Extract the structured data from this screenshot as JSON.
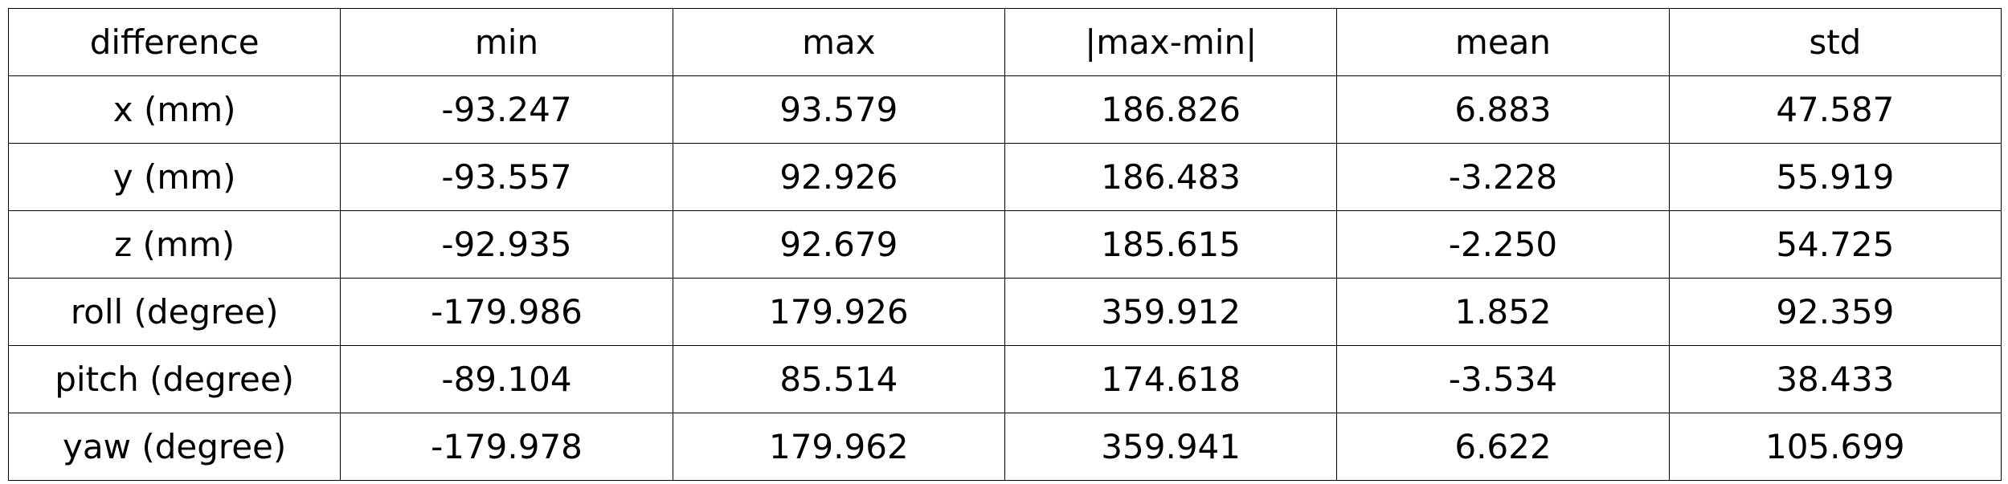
{
  "chart_data": {
    "type": "table",
    "columns": [
      "difference",
      "min",
      "max",
      "|max-min|",
      "mean",
      "std"
    ],
    "rows": [
      [
        "x (mm)",
        "-93.247",
        "93.579",
        "186.826",
        "6.883",
        "47.587"
      ],
      [
        "y (mm)",
        "-93.557",
        "92.926",
        "186.483",
        "-3.228",
        "55.919"
      ],
      [
        "z (mm)",
        "-92.935",
        "92.679",
        "185.615",
        "-2.250",
        "54.725"
      ],
      [
        "roll (degree)",
        "-179.986",
        "179.926",
        "359.912",
        "1.852",
        "92.359"
      ],
      [
        "pitch (degree)",
        "-89.104",
        "85.514",
        "174.618",
        "-3.534",
        "38.433"
      ],
      [
        "yaw (degree)",
        "-179.978",
        "179.962",
        "359.941",
        "6.622",
        "105.699"
      ]
    ]
  }
}
